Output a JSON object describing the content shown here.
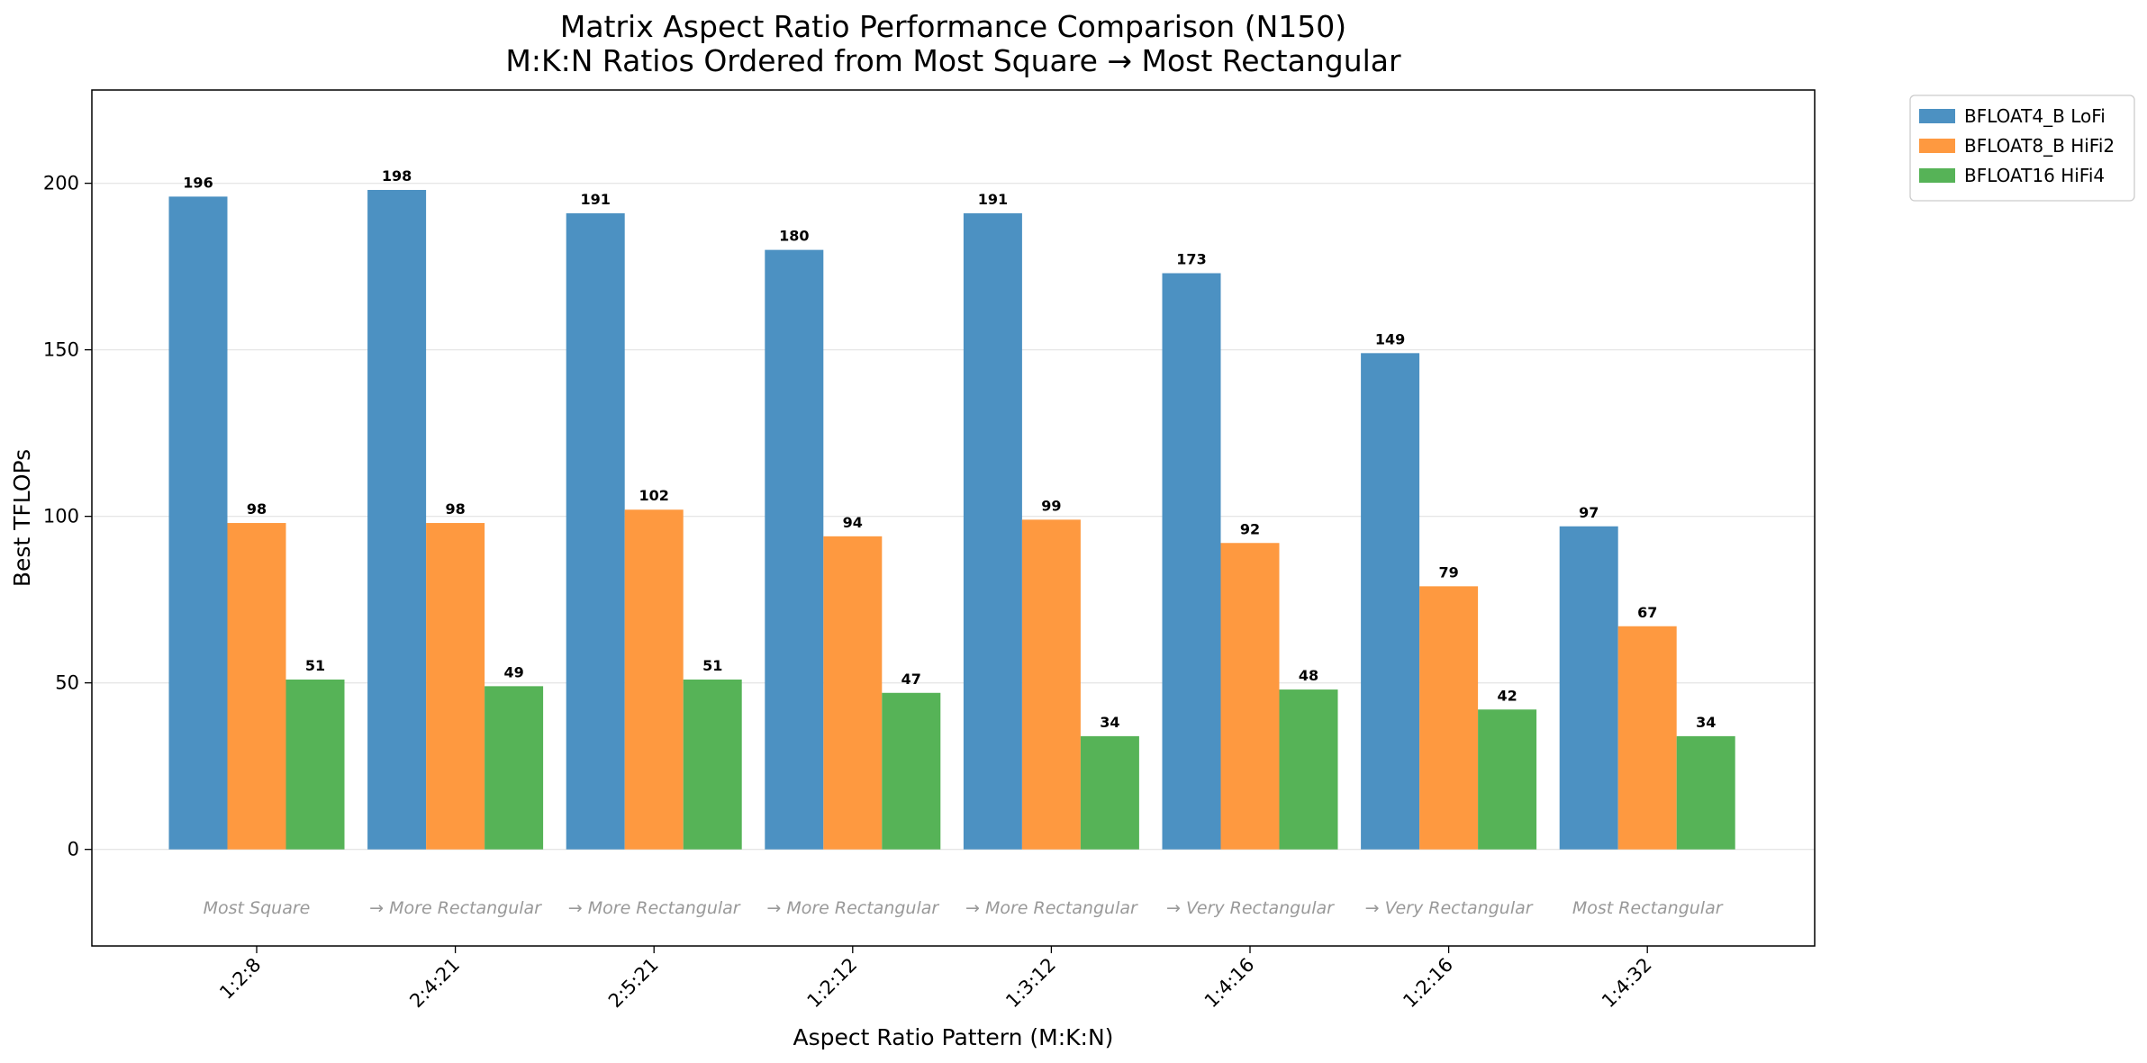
{
  "chart_data": {
    "type": "bar",
    "title": "Matrix Aspect Ratio Performance Comparison (N150)",
    "subtitle": "M:K:N Ratios Ordered from Most Square → Most Rectangular",
    "xlabel": "Aspect Ratio Pattern (M:K:N)",
    "ylabel": "Best TFLOPs",
    "ylim": [
      -29,
      228
    ],
    "yticks": [
      0,
      50,
      100,
      150,
      200
    ],
    "grid": true,
    "legend_position": "outside top-right",
    "categories": [
      "1:2:8",
      "2:4:21",
      "2:5:21",
      "1:2:12",
      "1:3:12",
      "1:4:16",
      "1:2:16",
      "1:4:32"
    ],
    "annotations": [
      "Most Square",
      "→ More Rectangular",
      "→ More Rectangular",
      "→ More Rectangular",
      "→ More Rectangular",
      "→ Very Rectangular",
      "→ Very Rectangular",
      "Most Rectangular"
    ],
    "series": [
      {
        "name": "BFLOAT4_B LoFi",
        "color": "#4C91C2",
        "values": [
          196,
          198,
          191,
          180,
          191,
          173,
          149,
          97
        ]
      },
      {
        "name": "BFLOAT8_B HiFi2",
        "color": "#FE9940",
        "values": [
          98,
          98,
          102,
          94,
          99,
          92,
          79,
          67
        ]
      },
      {
        "name": "BFLOAT16 HiFi4",
        "color": "#56B357",
        "values": [
          51,
          49,
          51,
          47,
          34,
          48,
          42,
          34
        ]
      }
    ]
  }
}
